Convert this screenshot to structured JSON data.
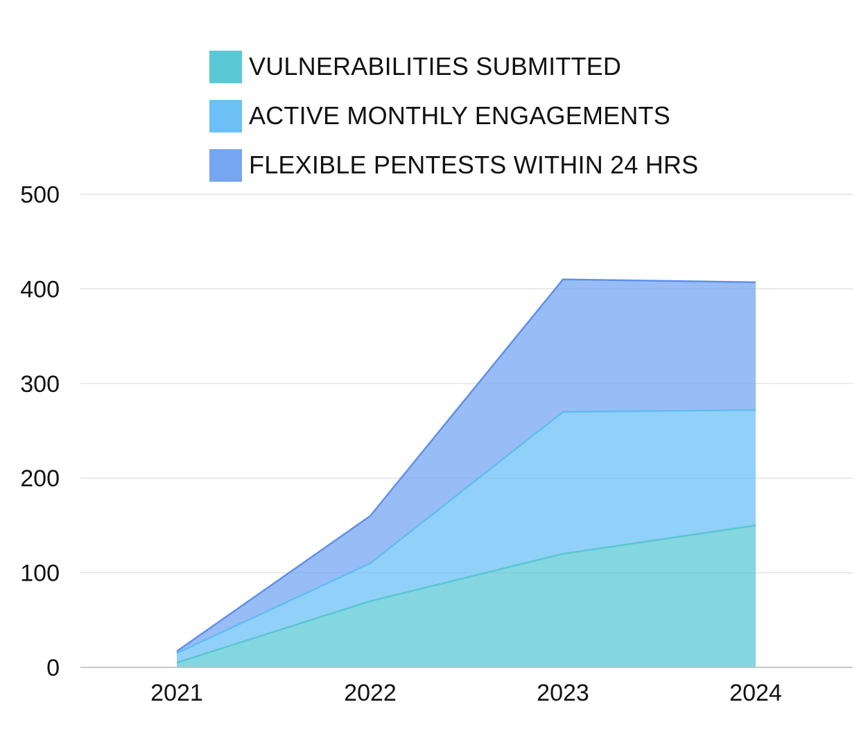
{
  "chart_data": {
    "type": "area",
    "stacked": true,
    "categories": [
      "2021",
      "2022",
      "2023",
      "2024"
    ],
    "ylim": [
      0,
      500
    ],
    "yticks": [
      "0",
      "100",
      "200",
      "300",
      "400",
      "500"
    ],
    "grid": true,
    "legend_placement": "top",
    "series": [
      {
        "name": "VULNERABILITIES SUBMITTED",
        "color": "#5BC8D6",
        "values": [
          5,
          70,
          120,
          150
        ]
      },
      {
        "name": "ACTIVE MONTHLY ENGAGEMENTS",
        "color": "#6CC0F5",
        "values": [
          10,
          40,
          150,
          122
        ]
      },
      {
        "name": "FLEXIBLE PENTESTS WITHIN 24 HRS",
        "color": "#76A6F1",
        "values": [
          2,
          50,
          140,
          135
        ]
      }
    ]
  }
}
